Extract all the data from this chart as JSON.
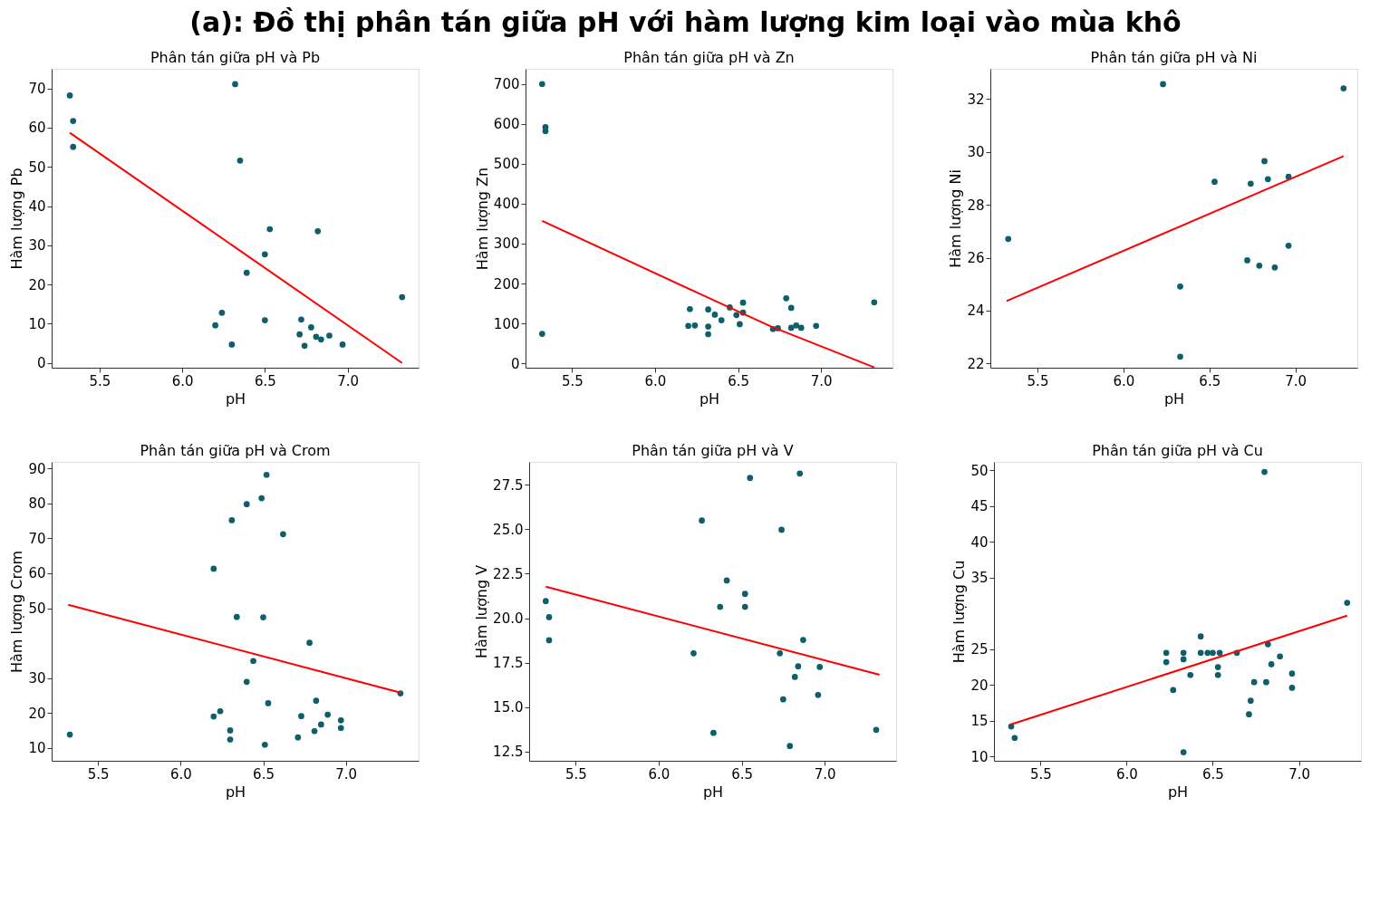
{
  "chart_data": [
    {
      "type": "scatter",
      "title": "(a): Đồ thị phân tán giữa pH với hàm lượng kim loại vào mùa khô",
      "subtitle": "Phân tán giữa pH và Pb",
      "xlabel": "pH",
      "ylabel": "Hàm lượng Pb",
      "xlim": [
        5.21,
        7.43
      ],
      "ylim": [
        -1.2,
        75
      ],
      "xticks": [
        {
          "value": 5.5,
          "label": "5.5"
        },
        {
          "value": 6,
          "label": "6.0"
        },
        {
          "value": 6.5,
          "label": "6.5"
        },
        {
          "value": 7,
          "label": "7.0"
        }
      ],
      "yticks": [
        0,
        10,
        20,
        30,
        40,
        50,
        60,
        70
      ],
      "grid": false,
      "marker": "circle",
      "series": [
        {
          "type": "scatter",
          "color": "#0e5f6b",
          "x": [
            5.32,
            5.34,
            5.34,
            6.32,
            6.35,
            6.53,
            6.82,
            6.5,
            6.39,
            7.33,
            6.24,
            6.2,
            6.5,
            6.3,
            6.72,
            6.71,
            6.78,
            6.81,
            6.84,
            6.89,
            6.74,
            6.97
          ],
          "values": [
            68.2,
            61.7,
            55.1,
            71.1,
            51.6,
            34.1,
            33.6,
            27.7,
            23.0,
            16.8,
            12.8,
            9.6,
            10.9,
            4.7,
            11.1,
            7.3,
            9.1,
            6.7,
            6.0,
            7.0,
            4.4,
            4.7
          ]
        },
        {
          "type": "line",
          "marker": "none",
          "color": "#ff0000",
          "x": [
            5.32,
            7.33
          ],
          "values": [
            58.7,
            0
          ]
        }
      ]
    },
    {
      "type": "scatter",
      "subtitle": "Phân tán giữa pH và Zn",
      "xlabel": "pH",
      "ylabel": "Hàm lượng Zn",
      "xlim": [
        5.22,
        7.43
      ],
      "ylim": [
        -11,
        738
      ],
      "xticks": [
        {
          "value": 5.5,
          "label": "5.5"
        },
        {
          "value": 6,
          "label": "6.0"
        },
        {
          "value": 6.5,
          "label": "6.5"
        },
        {
          "value": 7,
          "label": "7.0"
        }
      ],
      "yticks": [
        0,
        100,
        200,
        300,
        400,
        500,
        600,
        700
      ],
      "grid": false,
      "marker": "circle",
      "series": [
        {
          "type": "scatter",
          "color": "#0e5f6b",
          "x": [
            5.32,
            5.34,
            5.34,
            5.32,
            6.21,
            6.2,
            6.24,
            6.32,
            6.32,
            6.32,
            6.36,
            6.4,
            6.45,
            6.49,
            6.51,
            6.53,
            6.53,
            6.79,
            6.82,
            6.71,
            6.74,
            6.82,
            6.85,
            6.88,
            6.97,
            7.32
          ],
          "values": [
            700,
            592,
            582,
            74,
            136,
            94,
            95,
            135,
            92,
            73,
            122,
            108,
            140,
            121,
            98,
            152,
            127,
            163,
            139,
            86,
            88,
            89,
            95,
            89,
            94,
            153
          ]
        },
        {
          "type": "line",
          "marker": "none",
          "color": "#ff0000",
          "x": [
            5.32,
            6.26,
            6.7,
            7.32
          ],
          "values": [
            357,
            176,
            92,
            -10
          ]
        }
      ]
    },
    {
      "type": "scatter",
      "subtitle": "Phân tán giữa pH và Ni",
      "xlabel": "pH",
      "ylabel": "Hàm lượng Ni",
      "xlim": [
        5.226,
        7.36
      ],
      "ylim": [
        21.84,
        33.14
      ],
      "xticks": [
        {
          "value": 5.5,
          "label": "5.5"
        },
        {
          "value": 6,
          "label": "6.0"
        },
        {
          "value": 6.5,
          "label": "6.5"
        },
        {
          "value": 7,
          "label": "7.0"
        }
      ],
      "yticks": [
        22,
        24,
        26,
        28,
        30,
        32
      ],
      "grid": false,
      "marker": "circle",
      "series": [
        {
          "type": "scatter",
          "color": "#0e5f6b",
          "x": [
            6.23,
            7.28,
            5.33,
            6.82,
            6.53,
            6.74,
            6.84,
            6.96,
            6.96,
            6.72,
            6.79,
            6.88,
            6.33,
            6.33
          ],
          "values": [
            32.56,
            32.4,
            26.71,
            29.65,
            28.87,
            28.8,
            28.97,
            29.06,
            26.45,
            25.9,
            25.7,
            25.63,
            24.91,
            22.26
          ]
        },
        {
          "type": "line",
          "marker": "none",
          "color": "#ff0000",
          "x": [
            5.32,
            7.28
          ],
          "values": [
            24.36,
            29.84
          ]
        }
      ]
    },
    {
      "type": "scatter",
      "subtitle": "Phân tán giữa pH và Crom",
      "xlabel": "pH",
      "ylabel": "Hàm lượng Crom",
      "xlim": [
        5.22,
        7.44
      ],
      "ylim": [
        6.3,
        91.9
      ],
      "xticks": [
        {
          "value": 5.5,
          "label": "5.5"
        },
        {
          "value": 6,
          "label": "6.0"
        },
        {
          "value": 6.5,
          "label": "6.5"
        },
        {
          "value": 7,
          "label": "7.0"
        }
      ],
      "yticks": [
        10,
        20,
        30,
        50,
        60,
        70,
        80,
        90
      ],
      "grid": false,
      "marker": "circle",
      "series": [
        {
          "type": "scatter",
          "color": "#0e5f6b",
          "x": [
            6.52,
            6.49,
            6.4,
            6.31,
            6.62,
            6.2,
            6.34,
            6.5,
            6.78,
            6.44,
            6.4,
            7.33,
            6.82,
            6.53,
            6.24,
            6.2,
            6.73,
            6.89,
            6.97,
            6.97,
            6.85,
            6.81,
            6.3,
            6.3,
            6.71,
            6.51,
            5.33
          ],
          "values": [
            88.2,
            81.5,
            79.8,
            75.2,
            71.2,
            61.3,
            47.5,
            47.4,
            40.1,
            34.9,
            28.9,
            25.6,
            23.5,
            22.8,
            20.5,
            19.0,
            19.1,
            19.5,
            17.9,
            15.7,
            16.7,
            14.8,
            15.0,
            12.4,
            13.0,
            10.9,
            13.8
          ]
        },
        {
          "type": "line",
          "marker": "none",
          "color": "#ff0000",
          "x": [
            5.32,
            7.33
          ],
          "values": [
            51.0,
            25.8
          ]
        }
      ]
    },
    {
      "type": "scatter",
      "subtitle": "Phân tán giữa pH và V",
      "xlabel": "pH",
      "ylabel": "Hàm lượng V",
      "xlim": [
        5.22,
        7.43
      ],
      "ylim": [
        11.99,
        28.78
      ],
      "xticks": [
        {
          "value": 5.5,
          "label": "5.5"
        },
        {
          "value": 6,
          "label": "6.0"
        },
        {
          "value": 6.5,
          "label": "6.5"
        },
        {
          "value": 7,
          "label": "7.0"
        }
      ],
      "yticks": [
        {
          "value": 12.5,
          "label": "12.5"
        },
        {
          "value": 15,
          "label": "15.0"
        },
        {
          "value": 17.5,
          "label": "17.5"
        },
        {
          "value": 20,
          "label": "20.0"
        },
        {
          "value": 22.5,
          "label": "22.5"
        },
        {
          "value": 25,
          "label": "25.0"
        },
        {
          "value": 27.5,
          "label": "27.5"
        }
      ],
      "grid": false,
      "marker": "circle",
      "series": [
        {
          "type": "scatter",
          "color": "#0e5f6b",
          "x": [
            6.55,
            6.85,
            6.26,
            6.74,
            6.41,
            6.52,
            6.37,
            6.52,
            5.32,
            5.34,
            5.34,
            6.87,
            6.21,
            6.73,
            6.84,
            6.97,
            6.82,
            6.75,
            6.96,
            6.33,
            7.31,
            6.79
          ],
          "values": [
            27.88,
            28.13,
            25.49,
            24.97,
            22.12,
            21.37,
            20.64,
            20.64,
            20.96,
            20.06,
            18.76,
            18.78,
            18.03,
            18.03,
            17.3,
            17.26,
            16.7,
            15.44,
            15.69,
            13.56,
            13.73,
            12.82
          ]
        },
        {
          "type": "line",
          "marker": "none",
          "color": "#ff0000",
          "x": [
            5.32,
            7.33
          ],
          "values": [
            21.77,
            16.82
          ]
        }
      ]
    },
    {
      "type": "scatter",
      "subtitle": "Phân tán giữa pH và Cu",
      "xlabel": "pH",
      "ylabel": "Hàm lượng Cu",
      "xlim": [
        5.23,
        7.36
      ],
      "ylim": [
        9.4,
        51.2
      ],
      "xticks": [
        {
          "value": 5.5,
          "label": "5.5"
        },
        {
          "value": 6,
          "label": "6.0"
        },
        {
          "value": 6.5,
          "label": "6.5"
        },
        {
          "value": 7,
          "label": "7.0"
        }
      ],
      "yticks": [
        10,
        15,
        20,
        25,
        35,
        40,
        45,
        50
      ],
      "grid": false,
      "marker": "circle",
      "series": [
        {
          "type": "scatter",
          "color": "#0e5f6b",
          "x": [
            6.8,
            7.28,
            6.43,
            6.82,
            6.23,
            6.33,
            6.43,
            6.47,
            6.5,
            6.54,
            6.64,
            6.23,
            6.33,
            6.89,
            6.53,
            6.84,
            6.37,
            6.53,
            6.96,
            6.74,
            6.81,
            6.96,
            6.27,
            6.72,
            6.71,
            5.33,
            5.35,
            6.33
          ],
          "values": [
            49.8,
            31.5,
            26.8,
            25.7,
            24.5,
            24.5,
            24.5,
            24.5,
            24.5,
            24.5,
            24.5,
            23.2,
            23.6,
            24.0,
            22.5,
            22.9,
            21.4,
            21.4,
            21.6,
            20.4,
            20.4,
            19.6,
            19.3,
            17.8,
            15.9,
            14.2,
            12.6,
            10.6
          ]
        },
        {
          "type": "line",
          "marker": "none",
          "color": "#ff0000",
          "x": [
            5.33,
            7.28
          ],
          "values": [
            14.5,
            29.7
          ]
        }
      ]
    }
  ]
}
